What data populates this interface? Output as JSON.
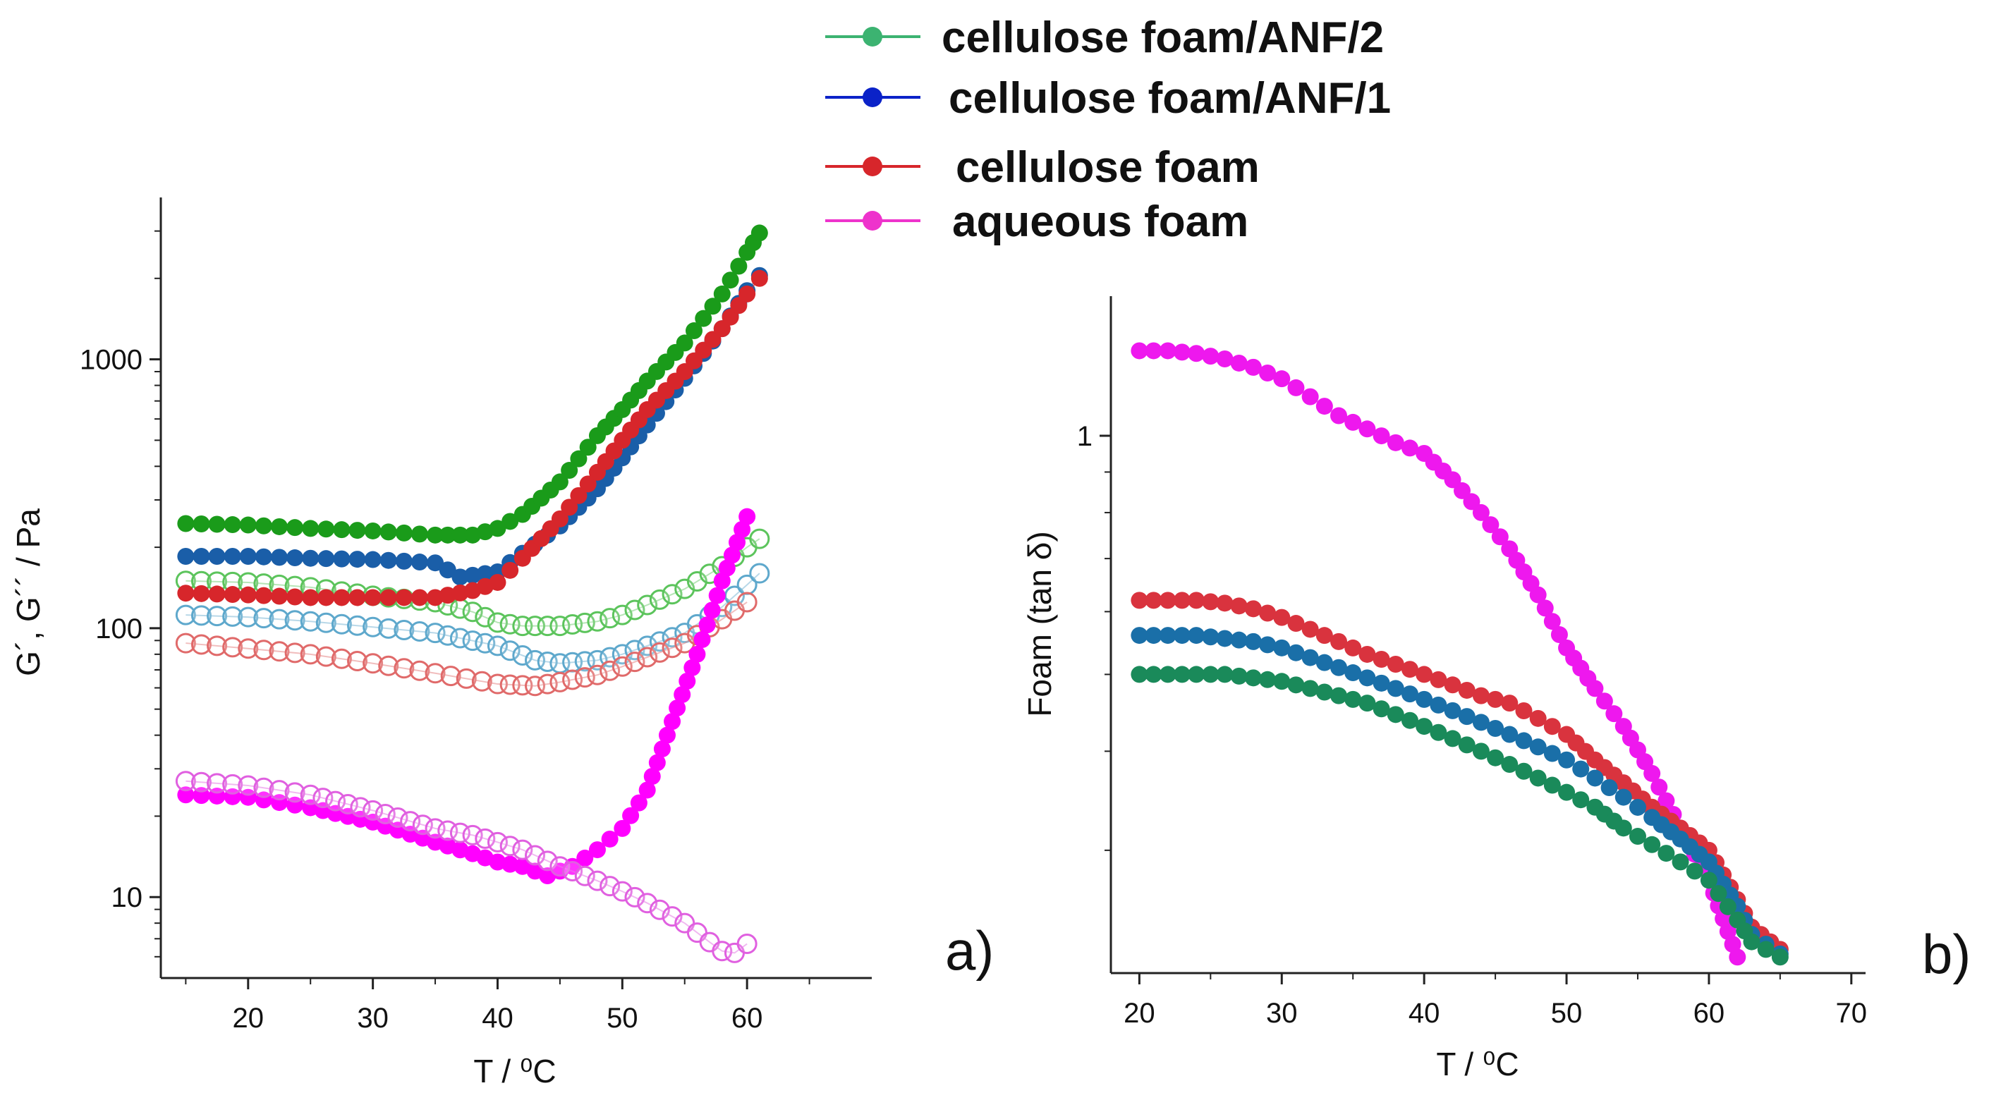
{
  "legend": {
    "entries": [
      {
        "label": "cellulose foam/ANF/2",
        "color": "#3cb371"
      },
      {
        "label": "cellulose foam/ANF/1",
        "color": "#0b22c8"
      },
      {
        "label": "cellulose foam",
        "color": "#d7262b"
      },
      {
        "label": "aqueous foam",
        "color": "#ee33cc"
      }
    ]
  },
  "chart_data": [
    {
      "type": "scatter",
      "panel_label": "a)",
      "xlabel": "T / ⁰C",
      "ylabel": "G´, G´´ / Pa",
      "xlim": [
        13,
        70
      ],
      "ylim": [
        5,
        4000
      ],
      "y_scale": "log",
      "x_ticks": [
        20,
        30,
        40,
        50,
        60
      ],
      "y_ticks": [
        {
          "value": 10,
          "label": "10"
        },
        {
          "value": 100,
          "label": "100"
        },
        {
          "value": 1000,
          "label": "1000"
        }
      ],
      "series": [
        {
          "name": "cellulose foam/ANF/2",
          "modulus": "G'",
          "filled": true,
          "color": "#1a9b1a",
          "x": [
            15,
            20,
            25,
            30,
            35,
            38,
            40,
            42,
            45,
            48,
            50,
            52,
            55,
            58,
            60,
            61
          ],
          "y": [
            245,
            242,
            235,
            230,
            222,
            222,
            235,
            265,
            350,
            520,
            650,
            830,
            1150,
            1750,
            2500,
            2950
          ]
        },
        {
          "name": "cellulose foam/ANF/2",
          "modulus": "G''",
          "filled": false,
          "color": "#5cc45c",
          "x": [
            15,
            20,
            25,
            30,
            35,
            38,
            40,
            42,
            45,
            48,
            50,
            52,
            55,
            58,
            60,
            61
          ],
          "y": [
            150,
            148,
            142,
            132,
            125,
            115,
            105,
            102,
            102,
            106,
            112,
            122,
            140,
            170,
            200,
            215
          ]
        },
        {
          "name": "cellulose foam/ANF/1",
          "modulus": "G'",
          "filled": true,
          "color": "#1a5ea8",
          "x": [
            15,
            20,
            25,
            30,
            35,
            37,
            40,
            42,
            45,
            48,
            50,
            52,
            55,
            58,
            60,
            61
          ],
          "y": [
            185,
            185,
            182,
            180,
            175,
            155,
            162,
            190,
            240,
            330,
            430,
            570,
            850,
            1300,
            1800,
            2050
          ]
        },
        {
          "name": "cellulose foam/ANF/1",
          "modulus": "G''",
          "filled": false,
          "color": "#5ea8cc",
          "x": [
            15,
            20,
            25,
            30,
            35,
            40,
            43,
            45,
            48,
            50,
            52,
            55,
            58,
            60,
            61
          ],
          "y": [
            112,
            110,
            106,
            101,
            96,
            86,
            76,
            74,
            76,
            80,
            86,
            96,
            120,
            145,
            160
          ]
        },
        {
          "name": "cellulose foam",
          "modulus": "G'",
          "filled": true,
          "color": "#d7262b",
          "x": [
            15,
            20,
            25,
            30,
            35,
            38,
            40,
            42,
            45,
            48,
            50,
            52,
            55,
            58,
            60,
            61
          ],
          "y": [
            135,
            133,
            130,
            130,
            130,
            138,
            148,
            182,
            255,
            380,
            500,
            650,
            900,
            1300,
            1750,
            2000
          ]
        },
        {
          "name": "cellulose foam",
          "modulus": "G''",
          "filled": false,
          "color": "#e06a6a",
          "x": [
            15,
            20,
            25,
            30,
            35,
            40,
            43,
            45,
            48,
            50,
            52,
            55,
            58,
            60
          ],
          "y": [
            88,
            84,
            80,
            74,
            68,
            62,
            61,
            63,
            67,
            72,
            78,
            88,
            108,
            125
          ]
        },
        {
          "name": "aqueous foam",
          "modulus": "G'",
          "filled": true,
          "color": "#ff00ff",
          "x": [
            15,
            20,
            25,
            30,
            35,
            38,
            40,
            42,
            44,
            46,
            48,
            50,
            52,
            54,
            56,
            58,
            60
          ],
          "y": [
            24,
            23.5,
            21.5,
            19,
            16,
            14.5,
            13.5,
            13,
            12,
            13,
            15,
            18,
            25,
            45,
            80,
            150,
            260
          ]
        },
        {
          "name": "aqueous foam",
          "modulus": "G''",
          "filled": false,
          "color": "#e060e0",
          "x": [
            15,
            20,
            25,
            30,
            35,
            38,
            40,
            42,
            45,
            48,
            50,
            52,
            55,
            57,
            58,
            59,
            60
          ],
          "y": [
            27,
            26,
            24,
            21,
            18,
            17,
            16,
            15,
            13,
            11.5,
            10.5,
            9.5,
            8,
            6.8,
            6.3,
            6.2,
            6.7
          ]
        }
      ]
    },
    {
      "type": "scatter",
      "panel_label": "b)",
      "xlabel": "T / ⁰C",
      "ylabel": "Foam (tan δ)",
      "xlim": [
        18,
        71
      ],
      "ylim": [
        0.21,
        1.5
      ],
      "y_scale": "log",
      "x_ticks": [
        20,
        30,
        40,
        50,
        60,
        70
      ],
      "y_ticks": [
        {
          "value": 1,
          "label": "1"
        }
      ],
      "series": [
        {
          "name": "aqueous foam",
          "filled": true,
          "color": "#ee18ee",
          "x": [
            20,
            22,
            24,
            26,
            28,
            30,
            32,
            34,
            36,
            38,
            40,
            42,
            44,
            46,
            48,
            50,
            52,
            54,
            56,
            58,
            60,
            62
          ],
          "y": [
            1.28,
            1.28,
            1.27,
            1.25,
            1.22,
            1.18,
            1.12,
            1.06,
            1.02,
            0.98,
            0.95,
            0.88,
            0.8,
            0.72,
            0.63,
            0.54,
            0.48,
            0.43,
            0.375,
            0.32,
            0.275,
            0.22
          ]
        },
        {
          "name": "cellulose foam",
          "filled": true,
          "color": "#d9333e",
          "x": [
            20,
            22,
            24,
            26,
            28,
            30,
            32,
            34,
            36,
            38,
            40,
            42,
            44,
            46,
            48,
            50,
            52,
            54,
            56,
            58,
            60,
            62,
            63,
            65
          ],
          "y": [
            0.62,
            0.62,
            0.62,
            0.615,
            0.605,
            0.59,
            0.57,
            0.55,
            0.53,
            0.515,
            0.5,
            0.485,
            0.47,
            0.46,
            0.44,
            0.42,
            0.39,
            0.365,
            0.34,
            0.32,
            0.3,
            0.26,
            0.24,
            0.225
          ]
        },
        {
          "name": "cellulose foam/ANF/1",
          "filled": true,
          "color": "#1a6fa8",
          "x": [
            20,
            22,
            24,
            26,
            28,
            30,
            32,
            34,
            36,
            38,
            40,
            42,
            44,
            46,
            48,
            50,
            52,
            54,
            56,
            58,
            60,
            62,
            63,
            65
          ],
          "y": [
            0.56,
            0.56,
            0.56,
            0.555,
            0.55,
            0.54,
            0.525,
            0.51,
            0.495,
            0.48,
            0.465,
            0.45,
            0.435,
            0.42,
            0.405,
            0.39,
            0.37,
            0.35,
            0.33,
            0.31,
            0.29,
            0.255,
            0.235,
            0.222
          ]
        },
        {
          "name": "cellulose foam/ANF/2",
          "filled": true,
          "color": "#1a8a5a",
          "x": [
            20,
            22,
            24,
            26,
            28,
            30,
            32,
            34,
            36,
            38,
            40,
            42,
            44,
            46,
            48,
            50,
            52,
            54,
            56,
            58,
            60,
            62,
            63,
            65
          ],
          "y": [
            0.5,
            0.5,
            0.5,
            0.5,
            0.495,
            0.49,
            0.48,
            0.47,
            0.46,
            0.445,
            0.43,
            0.415,
            0.4,
            0.385,
            0.37,
            0.355,
            0.34,
            0.32,
            0.305,
            0.29,
            0.275,
            0.245,
            0.23,
            0.22
          ]
        }
      ]
    }
  ]
}
